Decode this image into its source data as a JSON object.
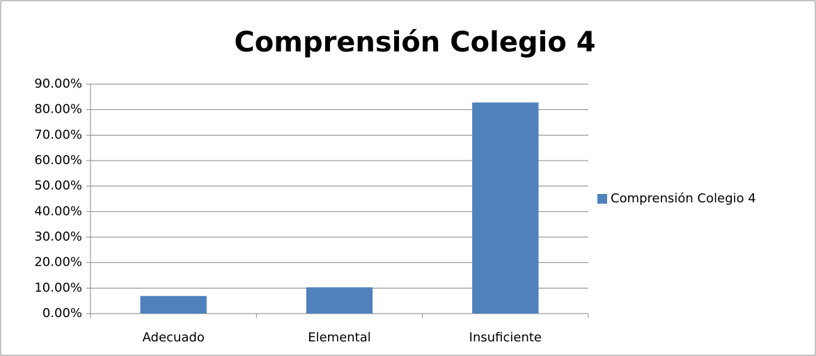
{
  "chart_data": {
    "type": "bar",
    "title": "Comprensión Colegio 4",
    "categories": [
      "Adecuado",
      "Elemental",
      "Insuficiente"
    ],
    "series": [
      {
        "name": "Comprensión Colegio 4",
        "color": "#4f81bd",
        "values": [
          6.9,
          10.3,
          82.8
        ]
      }
    ],
    "ylim": [
      0,
      90
    ],
    "yticks": [
      {
        "value": 0,
        "label": "0.00%"
      },
      {
        "value": 10,
        "label": "10.00%"
      },
      {
        "value": 20,
        "label": "20.00%"
      },
      {
        "value": 30,
        "label": "30.00%"
      },
      {
        "value": 40,
        "label": "40.00%"
      },
      {
        "value": 50,
        "label": "50.00%"
      },
      {
        "value": 60,
        "label": "60.00%"
      },
      {
        "value": 70,
        "label": "70.00%"
      },
      {
        "value": 80,
        "label": "80.00%"
      },
      {
        "value": 90,
        "label": "90.00%"
      }
    ],
    "grid": true,
    "legend": "right"
  }
}
